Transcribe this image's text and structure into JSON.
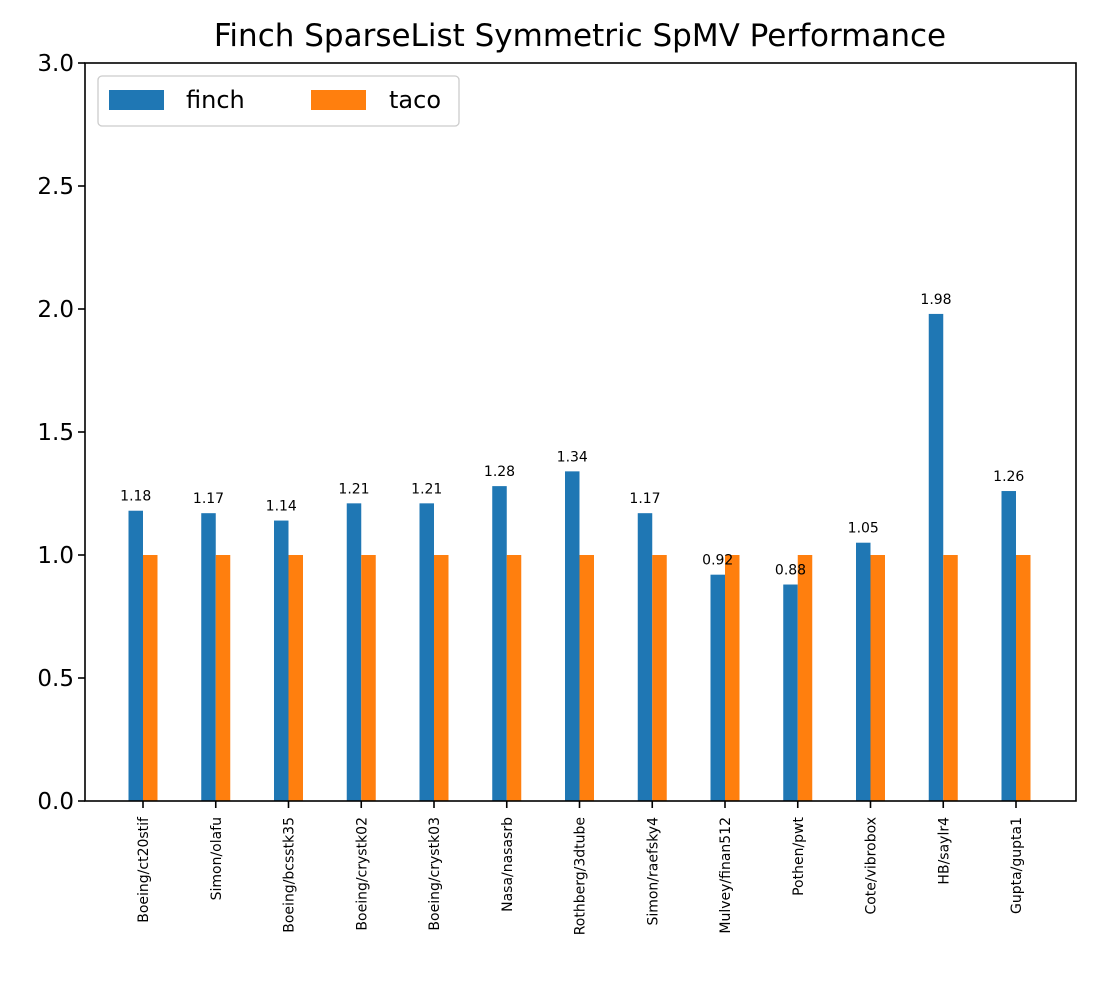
{
  "chart_data": {
    "type": "bar",
    "title": "Finch SparseList Symmetric SpMV Performance",
    "xlabel": "",
    "ylabel": "",
    "ylim": [
      0,
      3
    ],
    "yticks": [
      "0.0",
      "0.5",
      "1.0",
      "1.5",
      "2.0",
      "2.5",
      "3.0"
    ],
    "grid": false,
    "legend_position": "top-left",
    "categories": [
      "Boeing/ct20stif",
      "Simon/olafu",
      "Boeing/bcsstk35",
      "Boeing/crystk02",
      "Boeing/crystk03",
      "Nasa/nasasrb",
      "Rothberg/3dtube",
      "Simon/raefsky4",
      "Mulvey/finan512",
      "Pothen/pwt",
      "Cote/vibrobox",
      "HB/saylr4",
      "Gupta/gupta1"
    ],
    "series": [
      {
        "name": "finch",
        "color": "#1f77b4",
        "values": [
          1.18,
          1.17,
          1.14,
          1.21,
          1.21,
          1.28,
          1.34,
          1.17,
          0.92,
          0.88,
          1.05,
          1.98,
          1.26
        ]
      },
      {
        "name": "taco",
        "color": "#ff7f0e",
        "values": [
          1,
          1,
          1,
          1,
          1,
          1,
          1,
          1,
          1,
          1,
          1,
          1,
          1
        ]
      }
    ],
    "data_labels": [
      "1.18",
      "1.17",
      "1.14",
      "1.21",
      "1.21",
      "1.28",
      "1.34",
      "1.17",
      "0.92",
      "0.88",
      "1.05",
      "1.98",
      "1.26"
    ]
  }
}
